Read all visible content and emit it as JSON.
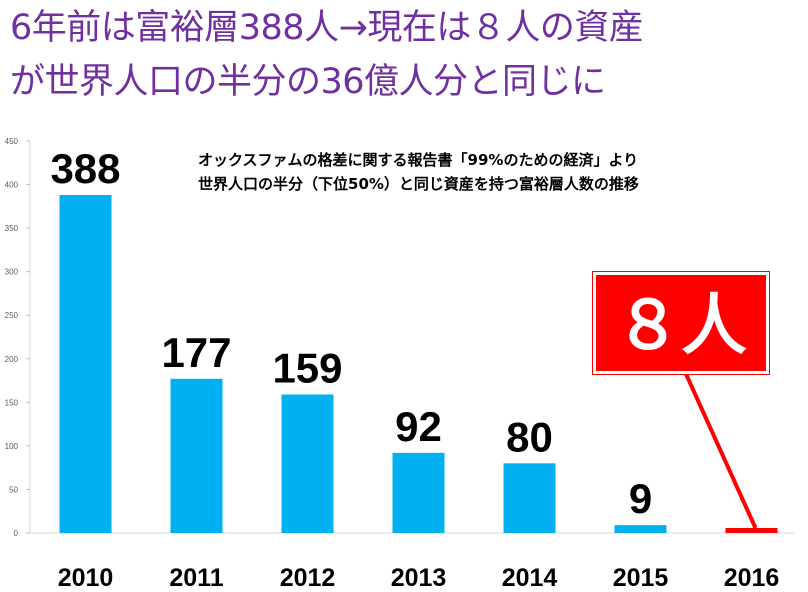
{
  "title": {
    "line1": "6年前は富裕層388人→現在は８人の資産",
    "line2": "が世界人口の半分の36億人分と同じに"
  },
  "subtitle": {
    "line1": "オックスファムの格差に関する報告書「99%のための経済」より",
    "line2": "世界人口の半分（下位50%）と同じ資産を持つ富裕層人数の推移"
  },
  "callout": {
    "text": "８人"
  },
  "colors": {
    "bar": "#00b0f0",
    "highlight": "#ff0000",
    "title": "#7030a0"
  },
  "chart_data": {
    "type": "bar",
    "categories": [
      "2010",
      "2011",
      "2012",
      "2013",
      "2014",
      "2015",
      "2016"
    ],
    "values": [
      388,
      177,
      159,
      92,
      80,
      9,
      8
    ],
    "data_labels": [
      "388",
      "177",
      "159",
      "92",
      "80",
      "9",
      ""
    ],
    "ylim": [
      0,
      450
    ],
    "yticks": [
      0,
      50,
      100,
      150,
      200,
      250,
      300,
      350,
      400,
      450
    ],
    "grid": false,
    "highlight_category": "2016"
  }
}
